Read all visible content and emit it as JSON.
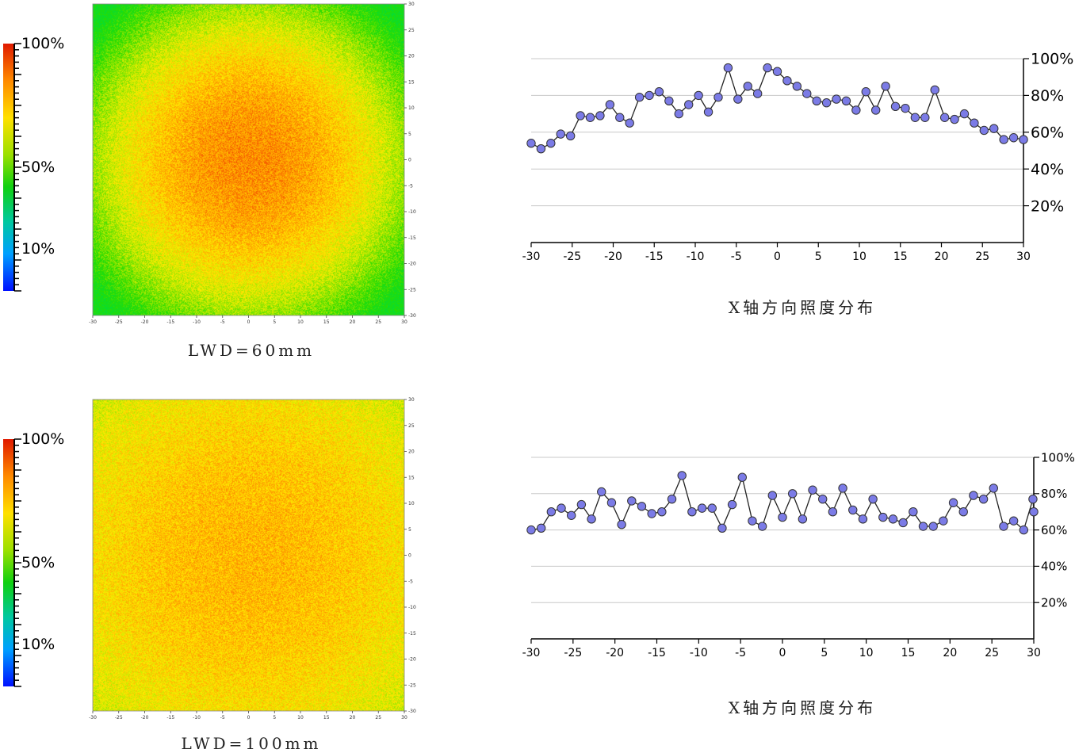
{
  "panels": [
    {
      "colorbar": {
        "labels": [
          "100%",
          "50%",
          "10%"
        ],
        "levels": [
          1.0,
          0.5,
          0.1
        ]
      },
      "heatmap": {
        "x_ticks": [
          "-30",
          "-25",
          "-20",
          "-15",
          "-10",
          "-5",
          "0",
          "5",
          "10",
          "15",
          "20",
          "25",
          "30"
        ],
        "y_ticks": [
          "30",
          "25",
          "20",
          "15",
          "10",
          "5",
          "0",
          "-5",
          "-10",
          "-15",
          "-20",
          "-25",
          "-30"
        ],
        "style": "centered"
      },
      "caption": "LWD=60mm",
      "chart_caption": "X轴方向照度分布"
    },
    {
      "colorbar": {
        "labels": [
          "100%",
          "50%",
          "10%"
        ],
        "levels": [
          1.0,
          0.5,
          0.1
        ]
      },
      "heatmap": {
        "x_ticks": [
          "-30",
          "-25",
          "-20",
          "-15",
          "-10",
          "-5",
          "0",
          "5",
          "10",
          "15",
          "20",
          "25",
          "30"
        ],
        "y_ticks": [
          "30",
          "25",
          "20",
          "15",
          "10",
          "5",
          "0",
          "-5",
          "-10",
          "-15",
          "-20",
          "-25",
          "-30"
        ],
        "style": "uniform"
      },
      "caption": "LWD=100mm",
      "chart_caption": "X轴方向照度分布"
    }
  ],
  "chart_data": [
    {
      "type": "line",
      "title": "X轴方向照度分布",
      "xlim": [
        -30,
        30
      ],
      "ylim": [
        0,
        100
      ],
      "x_tick_labels": [
        "-30",
        "-25",
        "-20",
        "-15",
        "-10",
        "-5",
        "0",
        "5",
        "10",
        "15",
        "20",
        "25",
        "30"
      ],
      "y_tick_values": [
        20,
        40,
        60,
        80,
        100
      ],
      "y_tick_labels": [
        "20%",
        "40%",
        "60%",
        "80%",
        "100%"
      ],
      "grid": true,
      "marker_color": "#7b7be6",
      "series": [
        {
          "x": [
            -30,
            -28.8,
            -27.6,
            -26.4,
            -25.2,
            -24,
            -22.8,
            -21.6,
            -20.4,
            -19.2,
            -18,
            -16.8,
            -15.6,
            -14.4,
            -13.2,
            -12,
            -10.8,
            -9.6,
            -8.4,
            -7.2,
            -6,
            -4.8,
            -3.6,
            -2.4,
            -1.2,
            0,
            1.2,
            2.4,
            3.6,
            4.8,
            6,
            7.2,
            8.4,
            9.6,
            10.8,
            12,
            13.2,
            14.4,
            15.6,
            16.8,
            18,
            19.2,
            20.4,
            21.6,
            22.8,
            24,
            25.2,
            26.4,
            27.6,
            28.8,
            30
          ],
          "y": [
            54,
            51,
            54,
            59,
            58,
            69,
            68,
            69,
            75,
            68,
            65,
            79,
            80,
            82,
            77,
            70,
            75,
            80,
            71,
            79,
            95,
            78,
            85,
            81,
            95,
            93,
            88,
            85,
            81,
            77,
            76,
            78,
            77,
            72,
            82,
            72,
            85,
            74,
            73,
            68,
            68,
            83,
            68,
            67,
            70,
            65,
            61,
            62,
            56,
            57,
            56
          ]
        }
      ]
    },
    {
      "type": "line",
      "title": "X轴方向照度分布",
      "xlim": [
        -30,
        30
      ],
      "ylim": [
        0,
        100
      ],
      "x_tick_labels": [
        "-30",
        "-25",
        "-20",
        "-15",
        "-10",
        "-5",
        "0",
        "5",
        "10",
        "15",
        "20",
        "25",
        "30"
      ],
      "y_tick_values": [
        20,
        40,
        60,
        80,
        100
      ],
      "y_tick_labels": [
        "20%",
        "40%",
        "60%",
        "80%",
        "100%"
      ],
      "grid": true,
      "marker_color": "#7b7be6",
      "series": [
        {
          "x": [
            -30,
            -28.8,
            -27.6,
            -26.4,
            -25.2,
            -24,
            -22.8,
            -21.6,
            -20.4,
            -19.2,
            -18,
            -16.8,
            -15.6,
            -14.4,
            -13.2,
            -12,
            -10.8,
            -9.6,
            -8.4,
            -7.2,
            -6,
            -4.8,
            -3.6,
            -2.4,
            -1.2,
            0,
            1.2,
            2.4,
            3.6,
            4.8,
            6,
            7.2,
            8.4,
            9.6,
            10.8,
            12,
            13.2,
            14.4,
            15.6,
            16.8,
            18,
            19.2,
            20.4,
            21.6,
            22.8,
            24,
            25.2,
            26.4,
            27.6,
            28.8,
            29.9,
            30
          ],
          "y": [
            60,
            61,
            70,
            72,
            68,
            74,
            66,
            81,
            75,
            63,
            76,
            73,
            69,
            70,
            77,
            90,
            70,
            72,
            72,
            61,
            74,
            89,
            65,
            62,
            79,
            67,
            80,
            66,
            82,
            77,
            70,
            83,
            71,
            66,
            77,
            67,
            66,
            64,
            70,
            62,
            62,
            65,
            75,
            70,
            79,
            77,
            83,
            62,
            65,
            60,
            77,
            70
          ]
        }
      ]
    }
  ]
}
